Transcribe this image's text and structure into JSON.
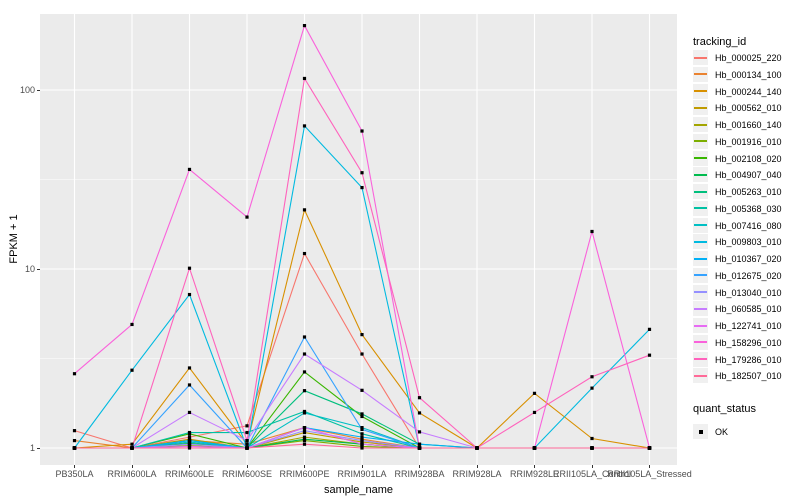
{
  "chart_data": {
    "type": "line",
    "title": "",
    "xlabel": "sample_name",
    "ylabel": "FPKM + 1",
    "y_scale": "log10",
    "y_ticks": [
      1,
      10,
      100
    ],
    "y_minor_gridlines": [
      3.1623,
      31.623
    ],
    "ylim": [
      1,
      290
    ],
    "grid": "white major and minor gridlines on grey panel",
    "legend_position": "right",
    "point_marker": {
      "shape": "square",
      "color": "#000000"
    },
    "categories": [
      "PB350LA",
      "RRIM600LA",
      "RRIM600LE",
      "RRIM600SE",
      "RRIM600PE",
      "RRIM901LA",
      "RRIM928BA",
      "RRIM928LA",
      "RRIM928LE",
      "RRII105LA_Control",
      "RRII105LA_Stressed"
    ],
    "series": [
      {
        "name": "Hb_000025_220",
        "color": "#F8766D",
        "values": [
          1.25,
          1,
          1.15,
          1.33,
          12.2,
          3.35,
          1,
          1,
          1,
          1,
          1
        ]
      },
      {
        "name": "Hb_000134_100",
        "color": "#EA8331",
        "values": [
          1.1,
          1,
          1.1,
          1.05,
          1.3,
          1.12,
          1,
          1,
          1,
          1,
          1
        ]
      },
      {
        "name": "Hb_000244_140",
        "color": "#D89000",
        "values": [
          1,
          1.05,
          2.8,
          1.05,
          21.4,
          4.3,
          1.57,
          1,
          2.02,
          1.13,
          1
        ]
      },
      {
        "name": "Hb_000562_010",
        "color": "#C09B00",
        "values": [
          1,
          1,
          1.12,
          1,
          1.22,
          1.08,
          1,
          1,
          1,
          1,
          1
        ]
      },
      {
        "name": "Hb_001660_140",
        "color": "#A3A500",
        "values": [
          1,
          1,
          1.06,
          1,
          1.15,
          1.05,
          1,
          1,
          1,
          1,
          1
        ]
      },
      {
        "name": "Hb_001916_010",
        "color": "#7CAE00",
        "values": [
          1,
          1,
          1.03,
          1,
          1.1,
          1.02,
          1,
          1,
          1,
          1,
          1
        ]
      },
      {
        "name": "Hb_002108_020",
        "color": "#39B600",
        "values": [
          1,
          1,
          1.2,
          1,
          2.66,
          1.5,
          1,
          1,
          1,
          1,
          1
        ]
      },
      {
        "name": "Hb_004907_040",
        "color": "#00BB4E",
        "values": [
          1,
          1,
          1.06,
          1,
          1.12,
          1.05,
          1,
          1,
          1,
          1,
          1
        ]
      },
      {
        "name": "Hb_005263_010",
        "color": "#00BF7D",
        "values": [
          1,
          1,
          1.1,
          1,
          2.09,
          1.55,
          1.05,
          1,
          1,
          1,
          1
        ]
      },
      {
        "name": "Hb_005368_030",
        "color": "#00C1A3",
        "values": [
          1,
          1,
          1.22,
          1.22,
          1.6,
          1.2,
          1,
          1,
          1,
          1,
          1
        ]
      },
      {
        "name": "Hb_007416_080",
        "color": "#00BFC4",
        "values": [
          1,
          1,
          1.08,
          1,
          1.57,
          1.3,
          1,
          1,
          1,
          1,
          1
        ]
      },
      {
        "name": "Hb_009803_010",
        "color": "#00BAE0",
        "values": [
          1,
          2.72,
          7.2,
          1,
          63,
          28.5,
          1,
          1,
          1,
          2.16,
          4.6
        ]
      },
      {
        "name": "Hb_010367_020",
        "color": "#00B0F6",
        "values": [
          1,
          1,
          1.1,
          1,
          1.3,
          1.15,
          1.05,
          1,
          1,
          1,
          1
        ]
      },
      {
        "name": "Hb_012675_020",
        "color": "#35A2FF",
        "values": [
          1,
          1,
          2.25,
          1,
          4.17,
          1.27,
          1,
          1,
          1,
          1,
          1
        ]
      },
      {
        "name": "Hb_013040_010",
        "color": "#9590FF",
        "values": [
          1,
          1,
          1.05,
          1,
          1.25,
          1.1,
          1,
          1,
          1,
          1,
          1
        ]
      },
      {
        "name": "Hb_060585_010",
        "color": "#C77CFF",
        "values": [
          1,
          1,
          1.58,
          1.1,
          3.35,
          2.1,
          1.23,
          1,
          1,
          1,
          1
        ]
      },
      {
        "name": "Hb_122741_010",
        "color": "#E76BF3",
        "values": [
          1,
          1,
          1.02,
          1,
          1.3,
          1.05,
          1,
          1,
          1,
          1,
          1
        ]
      },
      {
        "name": "Hb_158296_010",
        "color": "#FA62DB",
        "values": [
          2.6,
          4.9,
          36,
          19.5,
          229,
          59,
          1,
          1,
          1,
          16.2,
          1
        ]
      },
      {
        "name": "Hb_179286_010",
        "color": "#FF62BC",
        "values": [
          1,
          1,
          10.1,
          1.1,
          116,
          34.5,
          1.91,
          1,
          1.58,
          2.5,
          3.3
        ]
      },
      {
        "name": "Hb_182507_010",
        "color": "#FF6A98",
        "values": [
          1,
          1,
          1,
          1,
          1.05,
          1,
          1,
          1,
          1,
          1,
          1
        ]
      }
    ]
  },
  "legend": {
    "tracking_title": "tracking_id",
    "quant_title": "quant_status",
    "quant_items": [
      {
        "label": "OK",
        "marker": "black-square"
      }
    ]
  },
  "panel": {
    "background": "#EBEBEB",
    "gridline_color": "#FFFFFF"
  }
}
